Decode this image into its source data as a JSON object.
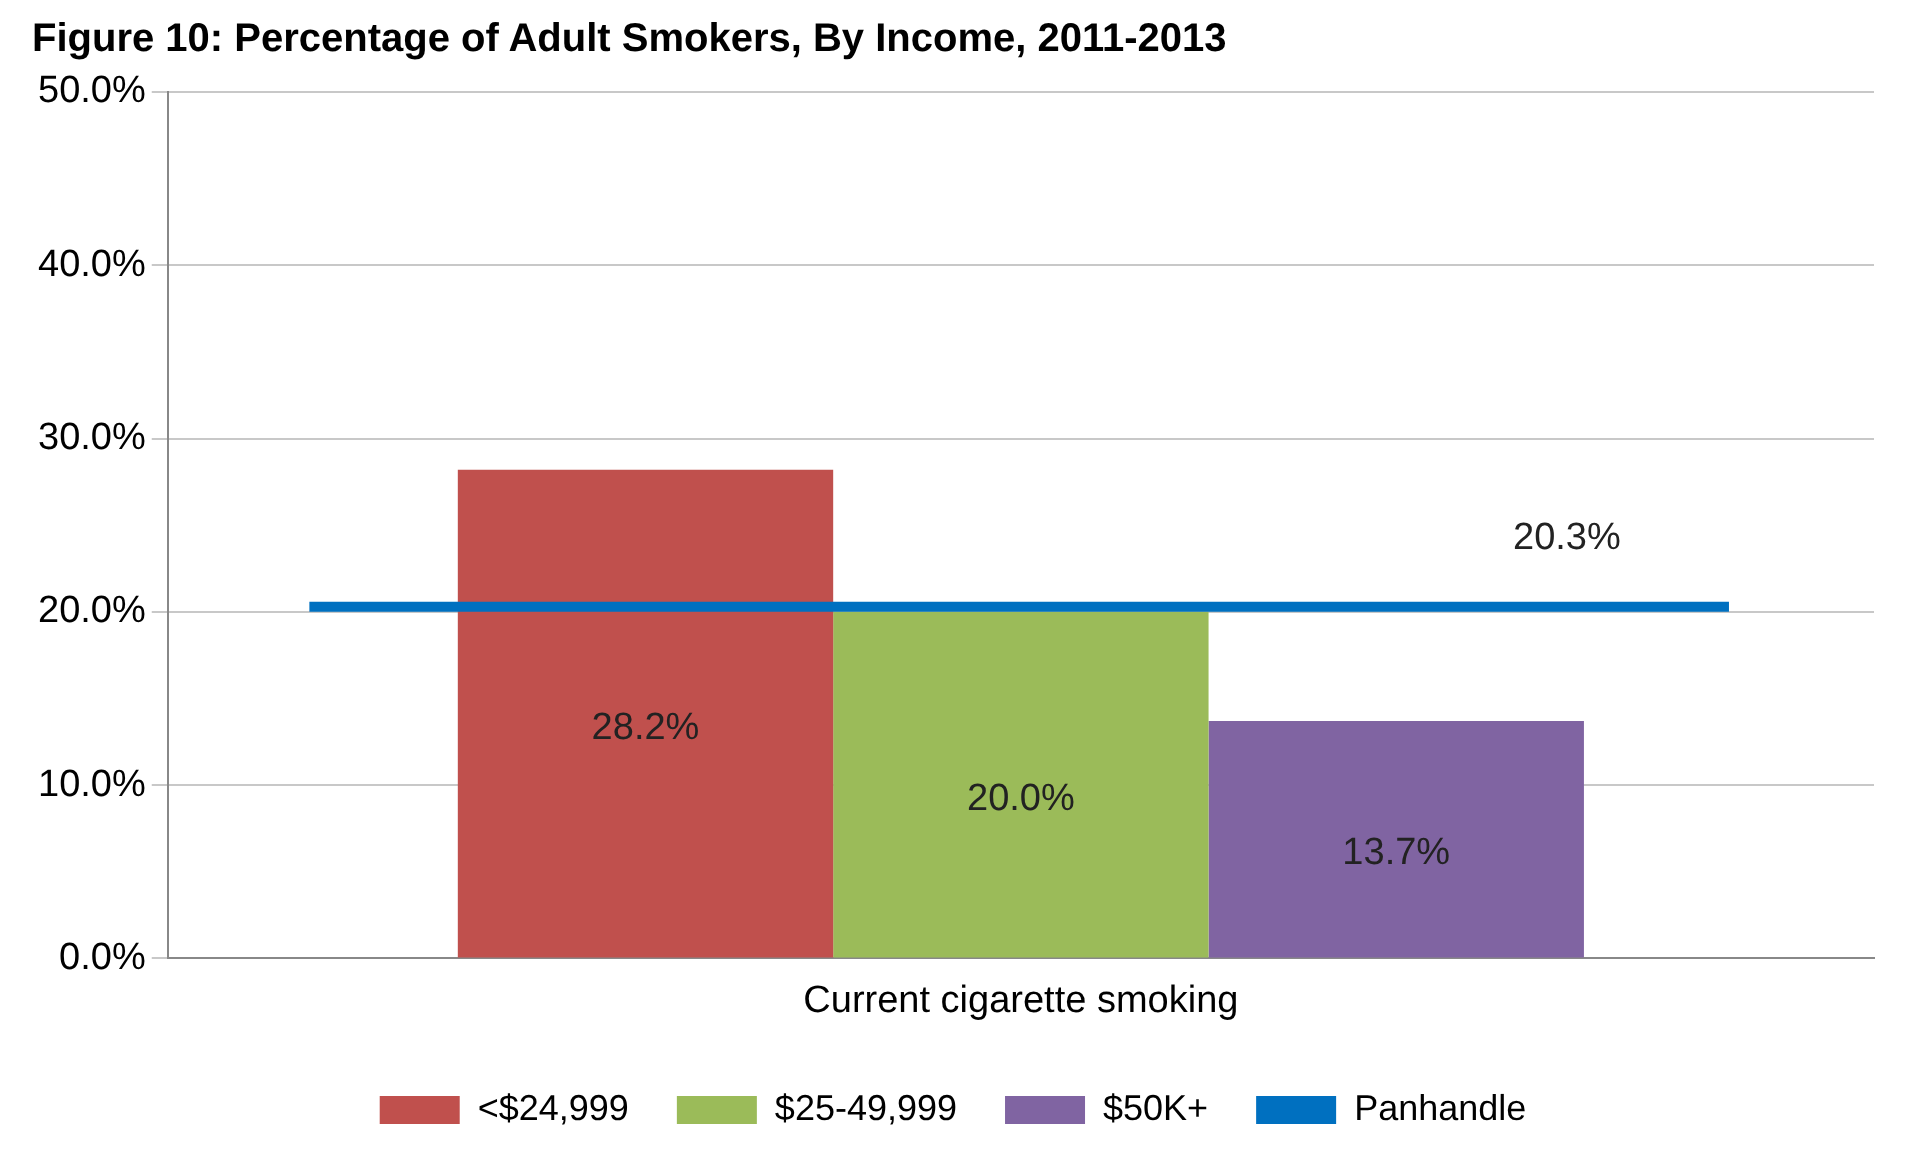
{
  "chart_data": {
    "type": "bar",
    "title": "Figure 10: Percentage of Adult Smokers, By Income, 2011-2013",
    "categories": [
      "Current cigarette smoking"
    ],
    "series": [
      {
        "name": "<$24,999",
        "color": "#c0504d",
        "values": [
          28.2
        ],
        "value_labels": [
          "28.2%"
        ]
      },
      {
        "name": "$25-49,999",
        "color": "#9bbb59",
        "values": [
          20.0
        ],
        "value_labels": [
          "20.0%"
        ]
      },
      {
        "name": "$50K+",
        "color": "#8064a2",
        "values": [
          13.7
        ],
        "value_labels": [
          "13.7%"
        ]
      }
    ],
    "ref_lines": [
      {
        "axis": "y",
        "value": 20.3,
        "label": "Panhandle",
        "color": "#0070c0"
      }
    ],
    "annotations": [
      "20.3%"
    ],
    "ylim": [
      0,
      50
    ],
    "yticks": [
      {
        "value": 0,
        "label": "0.0%"
      },
      {
        "value": 10,
        "label": "10.0%"
      },
      {
        "value": 20,
        "label": "20.0%"
      },
      {
        "value": 30,
        "label": "30.0%"
      },
      {
        "value": 40,
        "label": "40.0%"
      },
      {
        "value": 50,
        "label": "50.0%"
      }
    ],
    "grid": "y",
    "legend": "bottom"
  }
}
